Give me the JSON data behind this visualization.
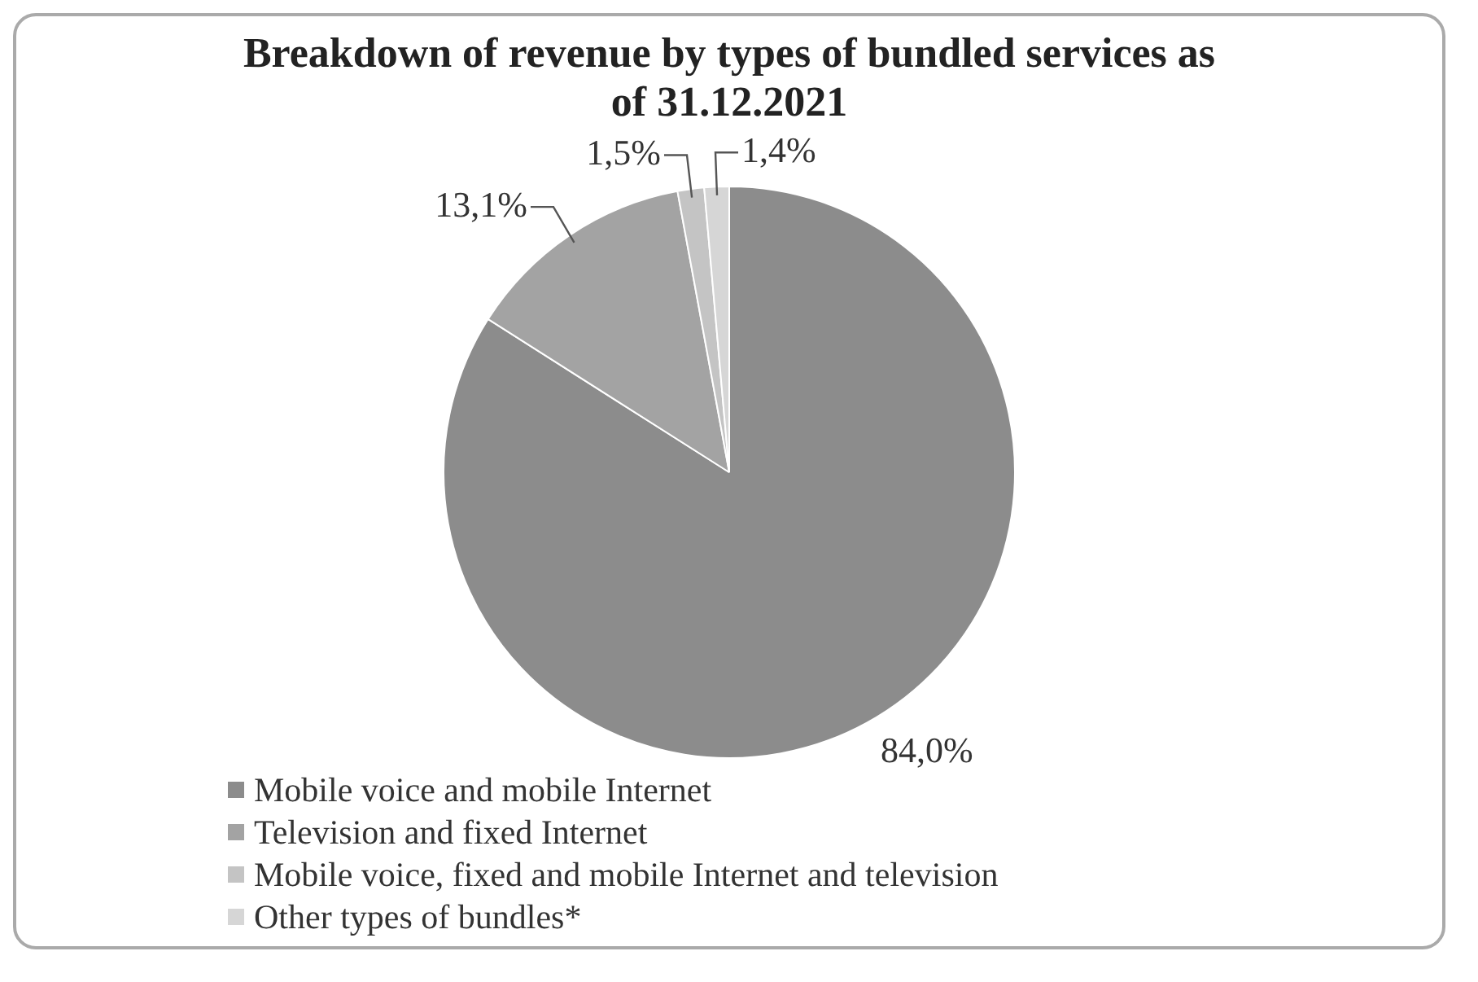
{
  "chart_data": {
    "type": "pie",
    "title": "Breakdown of revenue by types of bundled services as of 31.12.2021",
    "categories": [
      "Mobile voice and mobile Internet",
      "Television and fixed Internet",
      "Mobile voice, fixed and mobile Internet and television",
      "Other types of bundles*"
    ],
    "values": [
      84.0,
      13.1,
      1.5,
      1.4
    ],
    "colors": [
      "#8c8c8c",
      "#a3a3a3",
      "#c4c4c4",
      "#d6d6d6"
    ],
    "value_labels": [
      "84,0%",
      "13,1%",
      "1,5%",
      "1,4%"
    ],
    "legend": "bottom left"
  }
}
